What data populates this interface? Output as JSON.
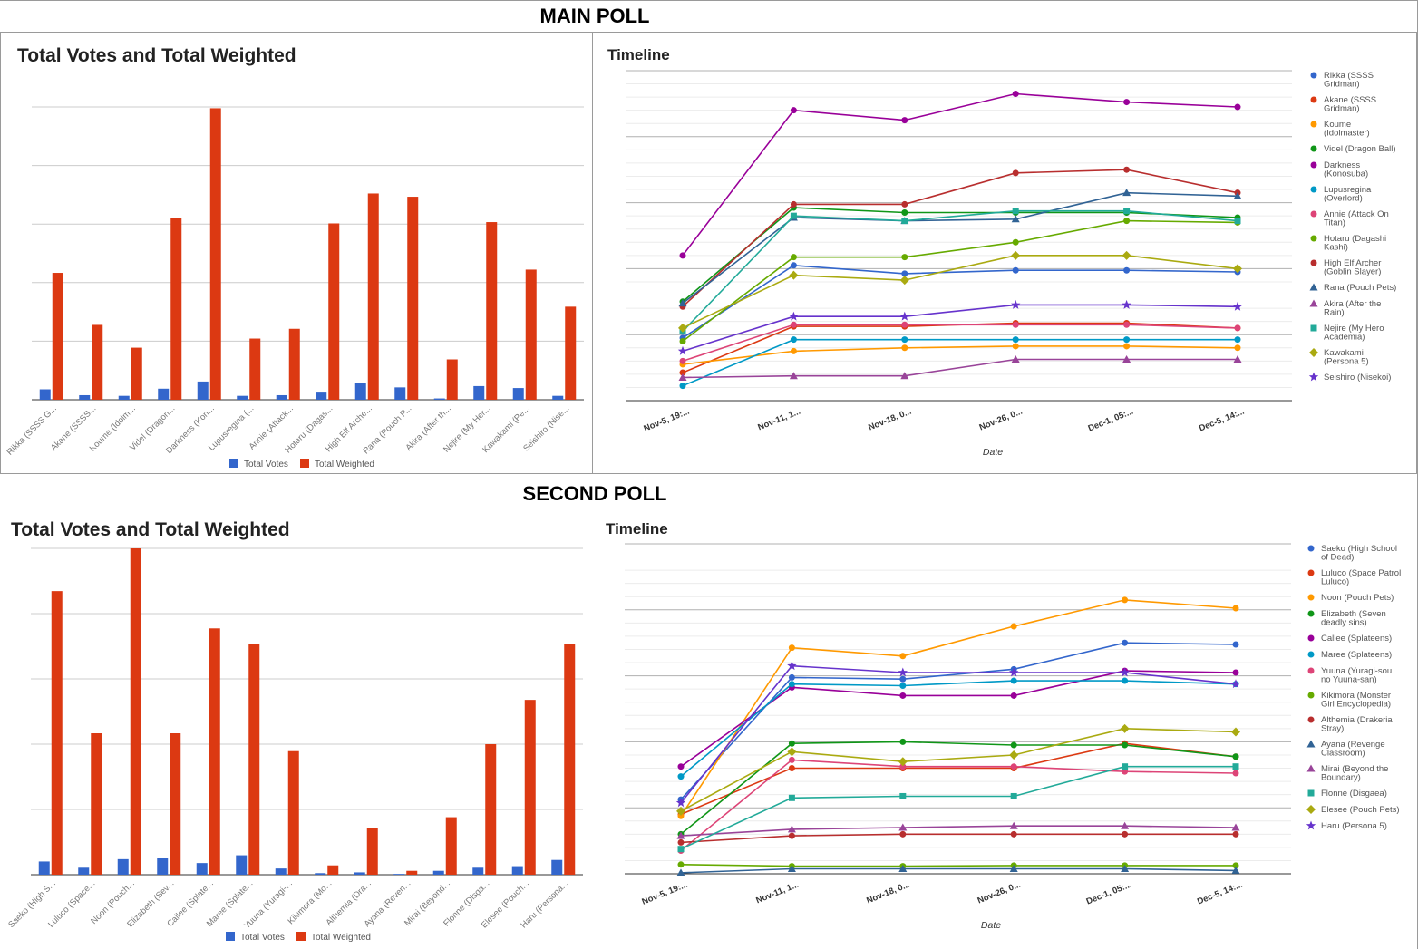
{
  "sections": [
    {
      "heading": "MAIN POLL"
    },
    {
      "heading": "SECOND POLL"
    }
  ],
  "legend": {
    "total_votes": "Total Votes",
    "total_weighted": "Total Weighted"
  },
  "colors": {
    "total_votes": "#3366cc",
    "total_weighted": "#dc3912"
  },
  "chart_data": [
    {
      "id": "main-bar",
      "type": "bar",
      "title": "Total Votes and Total Weighted",
      "ylim": [
        0,
        450
      ],
      "categories": [
        "Rikka (SSSS G...",
        "Akane (SSSS...",
        "Koume (Idolm...",
        "Videl (Dragon...",
        "Darkness (Kon...",
        "Lupusregina (...",
        "Annie (Attack...",
        "Hotaru (Dagas...",
        "High Elf Arche...",
        "Rana (Pouch P...",
        "Akira (After th...",
        "Nejire (My Her...",
        "Kawakami (Pe...",
        "Seishiro (Nise..."
      ],
      "series": [
        {
          "name": "Total Votes",
          "values": [
            16,
            7,
            6,
            17,
            28,
            6,
            7,
            11,
            26,
            19,
            2,
            21,
            18,
            6
          ]
        },
        {
          "name": "Total Weighted",
          "values": [
            195,
            115,
            80,
            280,
            448,
            94,
            109,
            271,
            317,
            312,
            62,
            273,
            200,
            143
          ]
        }
      ]
    },
    {
      "id": "main-line",
      "type": "line",
      "title": "Timeline",
      "xlabel": "Date",
      "x": [
        "Nov-5, 19:...",
        "Nov-11, 1...",
        "Nov-18, 0...",
        "Nov-26, 0...",
        "Dec-1, 05:...",
        "Dec-5, 14:..."
      ],
      "ylim": [
        0,
        100
      ],
      "series": [
        {
          "name": "Rikka (SSSS Gridman)",
          "color": "#3366cc",
          "marker": "circle",
          "values": [
            19,
            41,
            38.5,
            39.5,
            39.5,
            39
          ]
        },
        {
          "name": "Akane (SSSS Gridman)",
          "color": "#dc3912",
          "marker": "circle",
          "values": [
            8.5,
            22.5,
            22.5,
            23.5,
            23.5,
            22
          ]
        },
        {
          "name": "Koume (Idolmaster)",
          "color": "#ff9900",
          "marker": "circle",
          "values": [
            11,
            15,
            16,
            16.5,
            16.5,
            16
          ]
        },
        {
          "name": "Videl (Dragon Ball)",
          "color": "#109618",
          "marker": "circle",
          "values": [
            30,
            58.5,
            57,
            57,
            57,
            55.5
          ]
        },
        {
          "name": "Darkness (Konosuba)",
          "color": "#990099",
          "marker": "circle",
          "values": [
            44,
            88,
            85,
            93,
            90.5,
            89
          ]
        },
        {
          "name": "Lupusregina (Overlord)",
          "color": "#0099c6",
          "marker": "circle",
          "values": [
            4.5,
            18.5,
            18.5,
            18.5,
            18.5,
            18.5
          ]
        },
        {
          "name": "Annie (Attack On Titan)",
          "color": "#dd4477",
          "marker": "circle",
          "values": [
            12,
            23,
            23,
            23,
            23,
            22
          ]
        },
        {
          "name": "Hotaru (Dagashi Kashi)",
          "color": "#66aa00",
          "marker": "circle",
          "values": [
            18,
            43.5,
            43.5,
            48,
            54.5,
            54
          ]
        },
        {
          "name": "High Elf Archer (Goblin Slayer)",
          "color": "#b82e2e",
          "marker": "circle",
          "values": [
            28.5,
            59.5,
            59.5,
            69,
            70,
            63
          ]
        },
        {
          "name": "Rana (Pouch Pets)",
          "color": "#316395",
          "marker": "triangle",
          "values": [
            29.5,
            55.5,
            54.5,
            55,
            63,
            62
          ]
        },
        {
          "name": "Akira (After the Rain)",
          "color": "#994499",
          "marker": "triangle",
          "values": [
            7,
            7.5,
            7.5,
            12.5,
            12.5,
            12.5
          ]
        },
        {
          "name": "Nejire (My Hero Academia)",
          "color": "#22aa99",
          "marker": "square",
          "values": [
            21,
            56,
            54.5,
            57.5,
            57.5,
            54.5
          ]
        },
        {
          "name": "Kawakami (Persona 5)",
          "color": "#aaaa11",
          "marker": "diamond",
          "values": [
            22,
            38,
            36.5,
            44,
            44,
            40
          ]
        },
        {
          "name": "Seishiro (Nisekoi)",
          "color": "#6633cc",
          "marker": "star",
          "values": [
            15,
            25.5,
            25.5,
            29,
            29,
            28.5
          ]
        }
      ],
      "legend_labels": [
        [
          "Rikka (SSSS",
          "Gridman)"
        ],
        [
          "Akane (SSSS",
          "Gridman)"
        ],
        [
          "Koume",
          "(Idolmaster)"
        ],
        [
          "Videl (Dragon Ball)"
        ],
        [
          "Darkness",
          "(Konosuba)"
        ],
        [
          "Lupusregina",
          "(Overlord)"
        ],
        [
          "Annie (Attack On",
          "Titan)"
        ],
        [
          "Hotaru (Dagashi",
          "Kashi)"
        ],
        [
          "High Elf Archer",
          "(Goblin Slayer)"
        ],
        [
          "Rana (Pouch Pets)"
        ],
        [
          "Akira (After the",
          "Rain)"
        ],
        [
          "Nejire (My Hero",
          "Academia)"
        ],
        [
          "Kawakami",
          "(Persona 5)"
        ],
        [
          "Seishiro (Nisekoi)"
        ]
      ]
    },
    {
      "id": "second-bar",
      "type": "bar",
      "title": "Total Votes and Total Weighted",
      "ylim": [
        0,
        420
      ],
      "categories": [
        "Saeko (High S...",
        "Luluco (Space...",
        "Noon (Pouch...",
        "Elizabeth (Sev...",
        "Callee (Splate...",
        "Maree (Splate...",
        "Yuuna (Yuragi-...",
        "Kikimora (Mo...",
        "Althemia (Dra...",
        "Ayana (Reven...",
        "Mirai (Beyond...",
        "Flonne (Disga...",
        "Elesee (Pouch...",
        "Haru (Persona..."
      ],
      "series": [
        {
          "name": "Total Votes",
          "values": [
            17,
            9,
            20,
            21,
            15,
            25,
            8,
            2,
            3,
            1,
            5,
            9,
            11,
            19
          ]
        },
        {
          "name": "Total Weighted",
          "values": [
            365,
            182,
            420,
            182,
            317,
            297,
            159,
            12,
            60,
            5,
            74,
            168,
            225,
            297
          ]
        }
      ]
    },
    {
      "id": "second-line",
      "type": "line",
      "title": "Timeline",
      "xlabel": "Date",
      "x": [
        "Nov-5, 19:...",
        "Nov-11, 1...",
        "Nov-18, 0...",
        "Nov-26, 0...",
        "Dec-1, 05:...",
        "Dec-5, 14:..."
      ],
      "ylim": [
        0,
        100
      ],
      "series": [
        {
          "name": "Saeko (High School of Dead)",
          "color": "#3366cc",
          "marker": "circle",
          "values": [
            22.5,
            59.5,
            59,
            62,
            70,
            69.5
          ]
        },
        {
          "name": "Luluco (Space Patrol Luluco)",
          "color": "#dc3912",
          "marker": "circle",
          "values": [
            18,
            32,
            32,
            32,
            39.5,
            35.5
          ]
        },
        {
          "name": "Noon (Pouch Pets)",
          "color": "#ff9900",
          "marker": "circle",
          "values": [
            17.5,
            68.5,
            66,
            75,
            83,
            80.5
          ]
        },
        {
          "name": "Elizabeth (Seven deadly sins)",
          "color": "#109618",
          "marker": "circle",
          "values": [
            12,
            39.5,
            40,
            39,
            39,
            35.5
          ]
        },
        {
          "name": "Callee (Splateens)",
          "color": "#990099",
          "marker": "circle",
          "values": [
            32.5,
            56.5,
            54,
            54,
            61.5,
            61
          ]
        },
        {
          "name": "Maree (Splateens)",
          "color": "#0099c6",
          "marker": "circle",
          "values": [
            29.5,
            57.5,
            57,
            58.5,
            58.5,
            57.5
          ]
        },
        {
          "name": "Yuuna (Yuragi-sou no Yuuna-san)",
          "color": "#dd4477",
          "marker": "circle",
          "values": [
            7,
            34.5,
            32.5,
            32.5,
            31,
            30.5
          ]
        },
        {
          "name": "Kikimora (Monster Girl Encyclopedia)",
          "color": "#66aa00",
          "marker": "circle",
          "values": [
            2.8,
            2.3,
            2.3,
            2.5,
            2.5,
            2.5
          ]
        },
        {
          "name": "Althemia (Drakeria Stray)",
          "color": "#b82e2e",
          "marker": "circle",
          "values": [
            9.5,
            11.5,
            12,
            12,
            12,
            12
          ]
        },
        {
          "name": "Ayana (Revenge Classroom)",
          "color": "#316395",
          "marker": "triangle",
          "values": [
            0.3,
            1.5,
            1.5,
            1.5,
            1.5,
            1
          ]
        },
        {
          "name": "Mirai (Beyond the Boundary)",
          "color": "#994499",
          "marker": "triangle",
          "values": [
            11.5,
            13.5,
            14,
            14.5,
            14.5,
            14
          ]
        },
        {
          "name": "Flonne (Disgaea)",
          "color": "#22aa99",
          "marker": "square",
          "values": [
            7.5,
            23,
            23.5,
            23.5,
            32.5,
            32.5
          ]
        },
        {
          "name": "Elesee (Pouch Pets)",
          "color": "#aaaa11",
          "marker": "diamond",
          "values": [
            19,
            37,
            34,
            36,
            44,
            43
          ]
        },
        {
          "name": "Haru (Persona 5)",
          "color": "#6633cc",
          "marker": "star",
          "values": [
            21.5,
            63,
            61,
            61,
            61,
            57.5
          ]
        }
      ],
      "legend_labels": [
        [
          "Saeko (High School",
          "of Dead)"
        ],
        [
          "Luluco (Space Patrol",
          "Luluco)"
        ],
        [
          "Noon (Pouch Pets)"
        ],
        [
          "Elizabeth (Seven",
          "deadly sins)"
        ],
        [
          "Callee (Splateens)"
        ],
        [
          "Maree (Splateens)"
        ],
        [
          "Yuuna (Yuragi-sou",
          "no Yuuna-san)"
        ],
        [
          "Kikimora (Monster",
          "Girl Encyclopedia)"
        ],
        [
          "Althemia (Drakeria",
          "Stray)"
        ],
        [
          "Ayana (Revenge",
          "Classroom)"
        ],
        [
          "Mirai (Beyond the",
          "Boundary)"
        ],
        [
          "Flonne (Disgaea)"
        ],
        [
          "Elesee (Pouch Pets)"
        ],
        [
          "Haru (Persona 5)"
        ]
      ]
    }
  ]
}
